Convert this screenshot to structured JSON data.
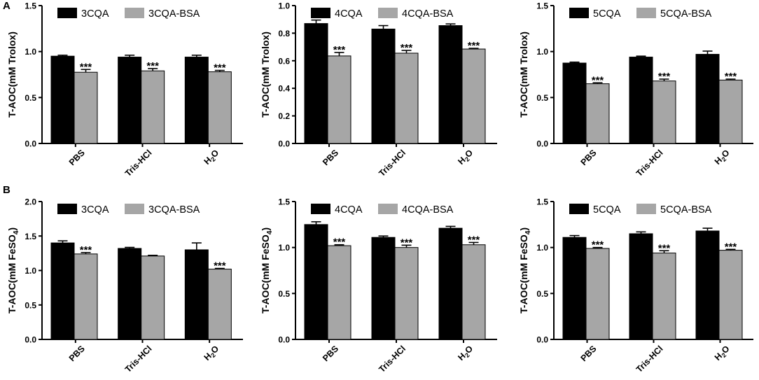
{
  "figure": {
    "panel_labels": [
      "A",
      "B"
    ],
    "colors": {
      "pure": "#000000",
      "bsa": "#a6a6a6",
      "axis": "#000000",
      "background": "#ffffff"
    },
    "significance_mark": "***"
  },
  "chart_data": [
    {
      "type": "bar",
      "panel": "A",
      "ylabel": "T-AOC(mM Trolox)",
      "ylim": [
        0,
        1.5
      ],
      "yticks": [
        "0.0",
        "0.5",
        "1.0",
        "1.5"
      ],
      "categories": [
        "PBS",
        "Tris-HCl",
        "H2O"
      ],
      "series": [
        {
          "name": "3CQA",
          "values": [
            0.95,
            0.94,
            0.94
          ],
          "errors": [
            0.01,
            0.02,
            0.02
          ]
        },
        {
          "name": "3CQA-BSA",
          "values": [
            0.775,
            0.79,
            0.78
          ],
          "errors": [
            0.03,
            0.025,
            0.015
          ]
        }
      ],
      "significance": [
        [
          false,
          true
        ],
        [
          false,
          true
        ],
        [
          false,
          true
        ]
      ]
    },
    {
      "type": "bar",
      "panel": "A",
      "ylabel": "T-AOC(mM Trolox)",
      "ylim": [
        0,
        1.0
      ],
      "yticks": [
        "0.0",
        "0.2",
        "0.4",
        "0.6",
        "0.8",
        "1.0"
      ],
      "categories": [
        "PBS",
        "Tris-HCl",
        "H2O"
      ],
      "series": [
        {
          "name": "4CQA",
          "values": [
            0.87,
            0.83,
            0.855
          ],
          "errors": [
            0.025,
            0.025,
            0.012
          ]
        },
        {
          "name": "4CQA-BSA",
          "values": [
            0.635,
            0.655,
            0.685
          ],
          "errors": [
            0.025,
            0.02,
            0.005
          ]
        }
      ],
      "significance": [
        [
          false,
          true
        ],
        [
          false,
          true
        ],
        [
          false,
          true
        ]
      ]
    },
    {
      "type": "bar",
      "panel": "A",
      "ylabel": "T-AOC(mM Trolox)",
      "ylim": [
        0,
        1.5
      ],
      "yticks": [
        "0.0",
        "0.5",
        "1.0",
        "1.5"
      ],
      "categories": [
        "PBS",
        "Tris-HCl",
        "H2O"
      ],
      "series": [
        {
          "name": "5CQA",
          "values": [
            0.875,
            0.94,
            0.97
          ],
          "errors": [
            0.01,
            0.01,
            0.035
          ]
        },
        {
          "name": "5CQA-BSA",
          "values": [
            0.65,
            0.68,
            0.69
          ],
          "errors": [
            0.01,
            0.02,
            0.01
          ]
        }
      ],
      "significance": [
        [
          false,
          true
        ],
        [
          false,
          true
        ],
        [
          false,
          true
        ]
      ]
    },
    {
      "type": "bar",
      "panel": "B",
      "ylabel": "T-AOC(mM FeSO4)",
      "ylim": [
        0,
        2.0
      ],
      "yticks": [
        "0.0",
        "0.5",
        "1.0",
        "1.5",
        "2.0"
      ],
      "categories": [
        "PBS",
        "Tris-HCl",
        "H2O"
      ],
      "series": [
        {
          "name": "3CQA",
          "values": [
            1.4,
            1.32,
            1.3
          ],
          "errors": [
            0.03,
            0.015,
            0.1
          ]
        },
        {
          "name": "3CQA-BSA",
          "values": [
            1.24,
            1.21,
            1.02
          ],
          "errors": [
            0.02,
            0.01,
            0.01
          ]
        }
      ],
      "significance": [
        [
          false,
          true
        ],
        [
          false,
          false
        ],
        [
          false,
          true
        ]
      ]
    },
    {
      "type": "bar",
      "panel": "B",
      "ylabel": "T-AOC(mM FeSO4)",
      "ylim": [
        0,
        1.5
      ],
      "yticks": [
        "0.0",
        "0.5",
        "1.0",
        "1.5"
      ],
      "categories": [
        "PBS",
        "Tris-HCl",
        "H2O"
      ],
      "series": [
        {
          "name": "4CQA",
          "values": [
            1.25,
            1.11,
            1.21
          ],
          "errors": [
            0.03,
            0.015,
            0.02
          ]
        },
        {
          "name": "4CQA-BSA",
          "values": [
            1.02,
            1.0,
            1.03
          ],
          "errors": [
            0.01,
            0.025,
            0.025
          ]
        }
      ],
      "significance": [
        [
          false,
          true
        ],
        [
          false,
          true
        ],
        [
          false,
          true
        ]
      ]
    },
    {
      "type": "bar",
      "panel": "B",
      "ylabel": "T-AOC(mM FeSO4)",
      "ylim": [
        0,
        1.5
      ],
      "yticks": [
        "0.0",
        "0.5",
        "1.0",
        "1.5"
      ],
      "categories": [
        "PBS",
        "Tris-HCl",
        "H2O"
      ],
      "series": [
        {
          "name": "5CQA",
          "values": [
            1.11,
            1.15,
            1.18
          ],
          "errors": [
            0.02,
            0.02,
            0.03
          ]
        },
        {
          "name": "5CQA-BSA",
          "values": [
            0.99,
            0.94,
            0.97
          ],
          "errors": [
            0.01,
            0.025,
            0.01
          ]
        }
      ],
      "significance": [
        [
          false,
          true
        ],
        [
          false,
          true
        ],
        [
          false,
          true
        ]
      ]
    }
  ]
}
